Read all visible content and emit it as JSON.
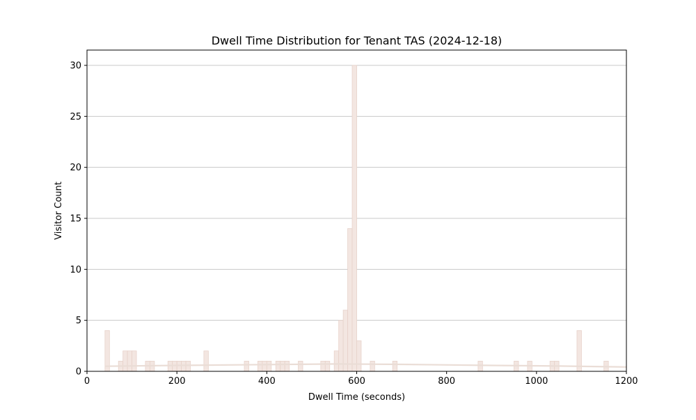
{
  "chart_data": {
    "type": "bar",
    "title": "Dwell Time Distribution for Tenant TAS (2024-12-18)",
    "xlabel": "Dwell Time (seconds)",
    "ylabel": "Visitor Count",
    "xlim": [
      0,
      1200
    ],
    "ylim": [
      0,
      31.5
    ],
    "x_ticks": [
      0,
      200,
      400,
      600,
      800,
      1000,
      1200
    ],
    "y_ticks": [
      0,
      5,
      10,
      15,
      20,
      25,
      30
    ],
    "grid": "y",
    "legend": "none",
    "bin_width": 10,
    "bars": [
      {
        "x": 40,
        "count": 4
      },
      {
        "x": 70,
        "count": 1
      },
      {
        "x": 80,
        "count": 2
      },
      {
        "x": 90,
        "count": 2
      },
      {
        "x": 100,
        "count": 2
      },
      {
        "x": 130,
        "count": 1
      },
      {
        "x": 140,
        "count": 1
      },
      {
        "x": 180,
        "count": 1
      },
      {
        "x": 190,
        "count": 1
      },
      {
        "x": 200,
        "count": 1
      },
      {
        "x": 210,
        "count": 1
      },
      {
        "x": 220,
        "count": 1
      },
      {
        "x": 260,
        "count": 2
      },
      {
        "x": 350,
        "count": 1
      },
      {
        "x": 380,
        "count": 1
      },
      {
        "x": 390,
        "count": 1
      },
      {
        "x": 400,
        "count": 1
      },
      {
        "x": 420,
        "count": 1
      },
      {
        "x": 430,
        "count": 1
      },
      {
        "x": 440,
        "count": 1
      },
      {
        "x": 470,
        "count": 1
      },
      {
        "x": 520,
        "count": 1
      },
      {
        "x": 530,
        "count": 1
      },
      {
        "x": 550,
        "count": 2
      },
      {
        "x": 560,
        "count": 5
      },
      {
        "x": 570,
        "count": 6
      },
      {
        "x": 580,
        "count": 14
      },
      {
        "x": 590,
        "count": 30
      },
      {
        "x": 600,
        "count": 3
      },
      {
        "x": 630,
        "count": 1
      },
      {
        "x": 680,
        "count": 1
      },
      {
        "x": 870,
        "count": 1
      },
      {
        "x": 950,
        "count": 1
      },
      {
        "x": 980,
        "count": 1
      },
      {
        "x": 1030,
        "count": 1
      },
      {
        "x": 1040,
        "count": 1
      },
      {
        "x": 1090,
        "count": 4
      },
      {
        "x": 1150,
        "count": 1
      }
    ],
    "kde_curve": [
      {
        "x": 40,
        "y": 0.5
      },
      {
        "x": 200,
        "y": 0.58
      },
      {
        "x": 400,
        "y": 0.66
      },
      {
        "x": 560,
        "y": 0.72
      },
      {
        "x": 700,
        "y": 0.68
      },
      {
        "x": 900,
        "y": 0.58
      },
      {
        "x": 1050,
        "y": 0.52
      },
      {
        "x": 1200,
        "y": 0.42
      }
    ],
    "colors": {
      "bar_fill": "#f3e6e1",
      "bar_edge": "#e7d2ca",
      "kde_line": "#eaddd6",
      "grid": "#c8c8c8"
    }
  }
}
